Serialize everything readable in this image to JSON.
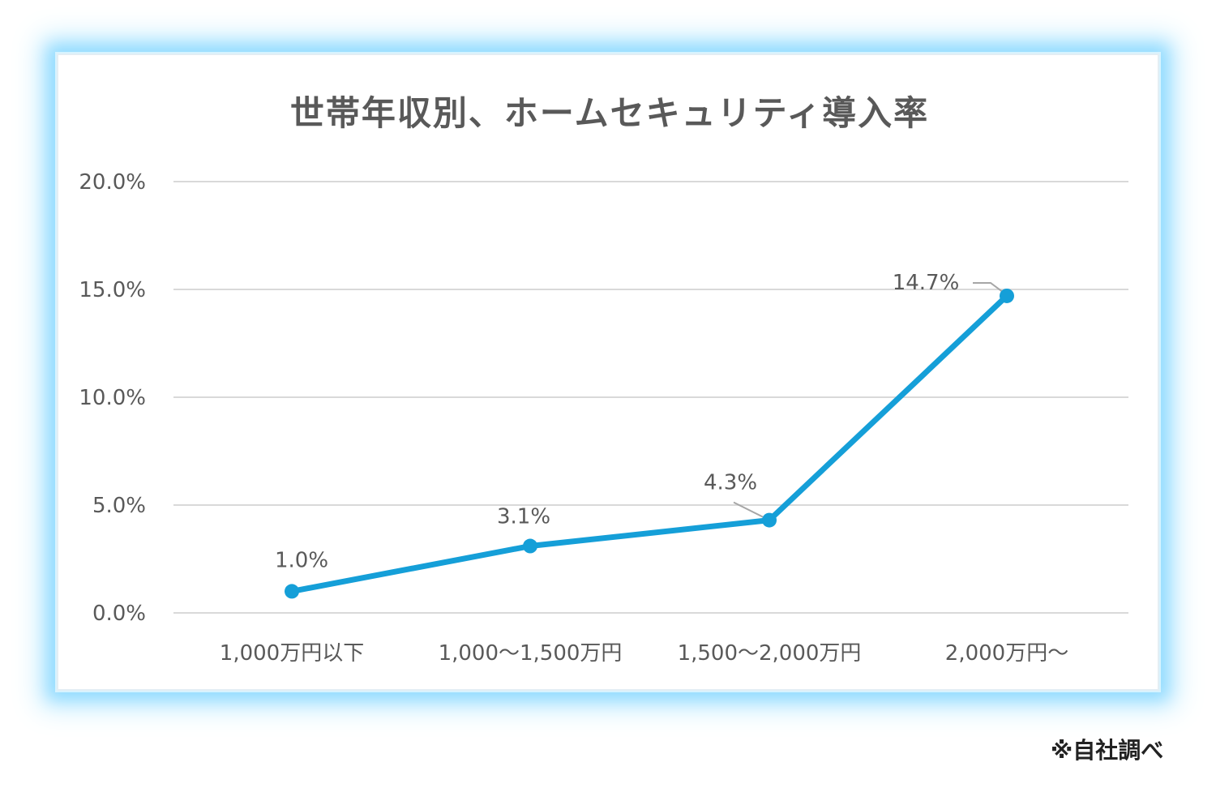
{
  "chart_data": {
    "type": "line",
    "title": "世帯年収別、ホームセキュリティ導入率",
    "categories": [
      "1,000万円以下",
      "1,000～1,500万円",
      "1,500～2,000万円",
      "2,000万円～"
    ],
    "values": [
      1.0,
      3.1,
      4.3,
      14.7
    ],
    "data_labels": [
      "1.0%",
      "3.1%",
      "4.3%",
      "14.7%"
    ],
    "y_ticks": [
      0,
      5,
      10,
      15,
      20
    ],
    "y_tick_labels": [
      "0.0%",
      "5.0%",
      "10.0%",
      "15.0%",
      "20.0%"
    ],
    "ylim": [
      0,
      20
    ],
    "grid": true,
    "legend": "none",
    "line_color": "#159fd8",
    "grid_color": "#d9d9d9",
    "text_color": "#595959",
    "glow_color": "#93dcff"
  },
  "note": "※自社調べ"
}
